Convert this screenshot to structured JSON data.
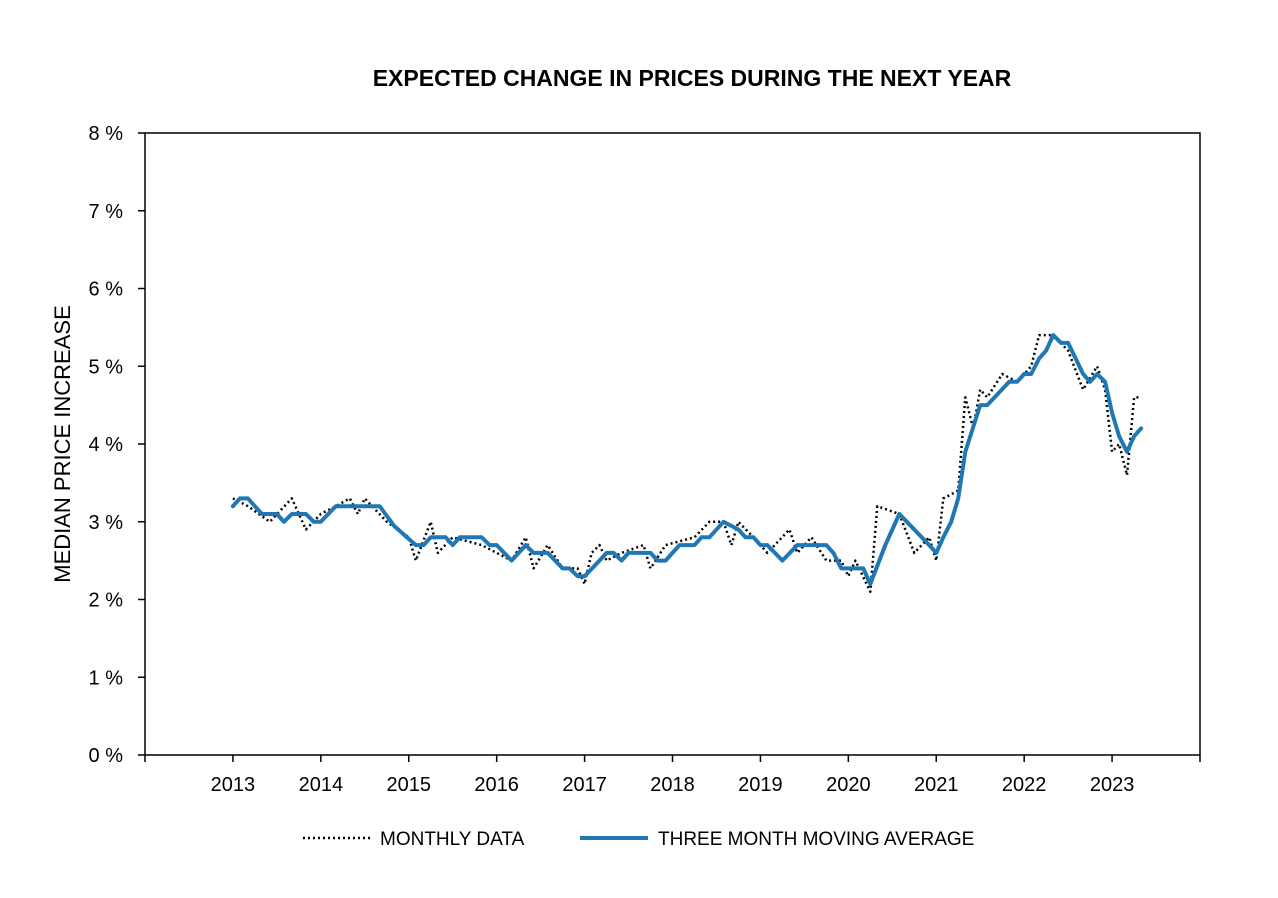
{
  "chart_data": {
    "type": "line",
    "title": "EXPECTED CHANGE IN PRICES DURING THE NEXT YEAR",
    "ylabel": "MEDIAN PRICE INCREASE",
    "xlabel": "",
    "ylim": [
      0,
      8
    ],
    "xlim": [
      2012.0,
      2024.0
    ],
    "y_ticks": [
      0,
      1,
      2,
      3,
      4,
      5,
      6,
      7,
      8
    ],
    "y_tick_labels": [
      "0 %",
      "1 %",
      "2 %",
      "3 %",
      "4 %",
      "5 %",
      "6 %",
      "7 %",
      "8 %"
    ],
    "x_tick_labels": [
      "2013",
      "2014",
      "2015",
      "2016",
      "2017",
      "2018",
      "2019",
      "2020",
      "2021",
      "2022",
      "2023"
    ],
    "x_label_positions": [
      2013,
      2014,
      2015,
      2016,
      2017,
      2018,
      2019,
      2020,
      2021,
      2022,
      2023
    ],
    "grid": false,
    "legend_position": "bottom",
    "colors": {
      "monthly": "#000000",
      "moving_average": "#1f77b4"
    },
    "series": [
      {
        "name": "MONTHLY DATA",
        "style": "dotted",
        "points": [
          [
            2013.0,
            3.3
          ],
          [
            2013.17,
            3.2
          ],
          [
            2013.42,
            3.0
          ],
          [
            2013.67,
            3.3
          ],
          [
            2013.83,
            2.9
          ],
          [
            2014.0,
            3.1
          ],
          [
            2014.17,
            3.2
          ],
          [
            2014.33,
            3.3
          ],
          [
            2014.42,
            3.1
          ],
          [
            2014.5,
            3.3
          ],
          [
            2014.75,
            3.0
          ],
          [
            2015.0,
            2.8
          ],
          [
            2015.08,
            2.5
          ],
          [
            2015.25,
            3.0
          ],
          [
            2015.33,
            2.6
          ],
          [
            2015.5,
            2.8
          ],
          [
            2015.83,
            2.7
          ],
          [
            2016.17,
            2.5
          ],
          [
            2016.33,
            2.8
          ],
          [
            2016.42,
            2.4
          ],
          [
            2016.58,
            2.7
          ],
          [
            2016.75,
            2.4
          ],
          [
            2016.92,
            2.4
          ],
          [
            2017.0,
            2.2
          ],
          [
            2017.08,
            2.6
          ],
          [
            2017.17,
            2.7
          ],
          [
            2017.25,
            2.5
          ],
          [
            2017.42,
            2.6
          ],
          [
            2017.67,
            2.7
          ],
          [
            2017.75,
            2.4
          ],
          [
            2017.92,
            2.7
          ],
          [
            2018.25,
            2.8
          ],
          [
            2018.42,
            3.0
          ],
          [
            2018.58,
            3.0
          ],
          [
            2018.67,
            2.7
          ],
          [
            2018.75,
            3.0
          ],
          [
            2018.92,
            2.8
          ],
          [
            2019.08,
            2.6
          ],
          [
            2019.33,
            2.9
          ],
          [
            2019.42,
            2.6
          ],
          [
            2019.58,
            2.8
          ],
          [
            2019.75,
            2.5
          ],
          [
            2019.92,
            2.5
          ],
          [
            2020.0,
            2.3
          ],
          [
            2020.08,
            2.5
          ],
          [
            2020.25,
            2.1
          ],
          [
            2020.33,
            3.2
          ],
          [
            2020.58,
            3.1
          ],
          [
            2020.75,
            2.6
          ],
          [
            2020.92,
            2.8
          ],
          [
            2021.0,
            2.5
          ],
          [
            2021.08,
            3.3
          ],
          [
            2021.25,
            3.4
          ],
          [
            2021.33,
            4.6
          ],
          [
            2021.42,
            4.2
          ],
          [
            2021.5,
            4.7
          ],
          [
            2021.58,
            4.6
          ],
          [
            2021.75,
            4.9
          ],
          [
            2021.92,
            4.8
          ],
          [
            2022.08,
            5.0
          ],
          [
            2022.17,
            5.4
          ],
          [
            2022.33,
            5.4
          ],
          [
            2022.5,
            5.2
          ],
          [
            2022.67,
            4.7
          ],
          [
            2022.83,
            5.0
          ],
          [
            2022.92,
            4.7
          ],
          [
            2023.0,
            3.9
          ],
          [
            2023.08,
            4.0
          ],
          [
            2023.17,
            3.6
          ],
          [
            2023.25,
            4.6
          ],
          [
            2023.33,
            4.6
          ]
        ]
      },
      {
        "name": "THREE MONTH MOVING AVERAGE",
        "style": "solid",
        "points": [
          [
            2013.0,
            3.2
          ],
          [
            2013.08,
            3.3
          ],
          [
            2013.17,
            3.3
          ],
          [
            2013.33,
            3.1
          ],
          [
            2013.5,
            3.1
          ],
          [
            2013.58,
            3.0
          ],
          [
            2013.67,
            3.1
          ],
          [
            2013.83,
            3.1
          ],
          [
            2013.92,
            3.0
          ],
          [
            2014.0,
            3.0
          ],
          [
            2014.17,
            3.2
          ],
          [
            2014.42,
            3.2
          ],
          [
            2014.67,
            3.2
          ],
          [
            2014.83,
            2.95
          ],
          [
            2015.08,
            2.7
          ],
          [
            2015.17,
            2.7
          ],
          [
            2015.25,
            2.8
          ],
          [
            2015.42,
            2.8
          ],
          [
            2015.5,
            2.7
          ],
          [
            2015.58,
            2.8
          ],
          [
            2015.83,
            2.8
          ],
          [
            2015.92,
            2.7
          ],
          [
            2016.0,
            2.7
          ],
          [
            2016.17,
            2.5
          ],
          [
            2016.33,
            2.7
          ],
          [
            2016.42,
            2.6
          ],
          [
            2016.58,
            2.6
          ],
          [
            2016.75,
            2.4
          ],
          [
            2016.83,
            2.4
          ],
          [
            2016.92,
            2.3
          ],
          [
            2017.0,
            2.3
          ],
          [
            2017.17,
            2.5
          ],
          [
            2017.25,
            2.6
          ],
          [
            2017.33,
            2.6
          ],
          [
            2017.42,
            2.5
          ],
          [
            2017.5,
            2.6
          ],
          [
            2017.75,
            2.6
          ],
          [
            2017.83,
            2.5
          ],
          [
            2017.92,
            2.5
          ],
          [
            2018.08,
            2.7
          ],
          [
            2018.25,
            2.7
          ],
          [
            2018.33,
            2.8
          ],
          [
            2018.42,
            2.8
          ],
          [
            2018.58,
            3.0
          ],
          [
            2018.75,
            2.9
          ],
          [
            2018.83,
            2.8
          ],
          [
            2018.92,
            2.8
          ],
          [
            2019.0,
            2.7
          ],
          [
            2019.08,
            2.7
          ],
          [
            2019.25,
            2.5
          ],
          [
            2019.42,
            2.7
          ],
          [
            2019.67,
            2.7
          ],
          [
            2019.75,
            2.7
          ],
          [
            2019.83,
            2.6
          ],
          [
            2019.92,
            2.4
          ],
          [
            2020.17,
            2.4
          ],
          [
            2020.25,
            2.2
          ],
          [
            2020.42,
            2.7
          ],
          [
            2020.58,
            3.1
          ],
          [
            2020.75,
            2.9
          ],
          [
            2020.92,
            2.7
          ],
          [
            2021.0,
            2.6
          ],
          [
            2021.08,
            2.8
          ],
          [
            2021.17,
            3.0
          ],
          [
            2021.25,
            3.3
          ],
          [
            2021.33,
            3.9
          ],
          [
            2021.5,
            4.5
          ],
          [
            2021.58,
            4.5
          ],
          [
            2021.83,
            4.8
          ],
          [
            2021.92,
            4.8
          ],
          [
            2022.0,
            4.9
          ],
          [
            2022.08,
            4.9
          ],
          [
            2022.17,
            5.1
          ],
          [
            2022.25,
            5.2
          ],
          [
            2022.33,
            5.4
          ],
          [
            2022.42,
            5.3
          ],
          [
            2022.5,
            5.3
          ],
          [
            2022.67,
            4.9
          ],
          [
            2022.75,
            4.8
          ],
          [
            2022.83,
            4.9
          ],
          [
            2022.92,
            4.8
          ],
          [
            2023.0,
            4.4
          ],
          [
            2023.08,
            4.1
          ],
          [
            2023.17,
            3.9
          ],
          [
            2023.25,
            4.1
          ],
          [
            2023.33,
            4.2
          ]
        ]
      }
    ]
  }
}
